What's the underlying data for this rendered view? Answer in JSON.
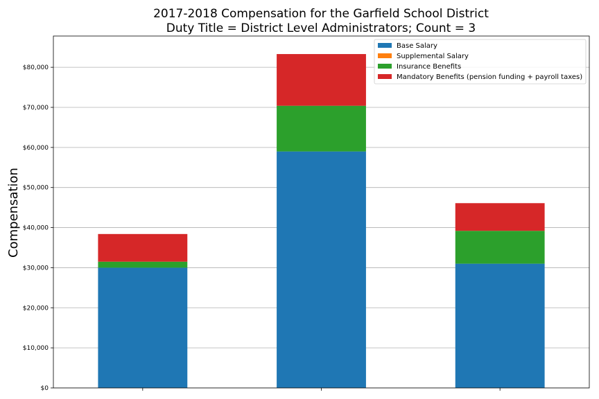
{
  "chart_data": {
    "type": "bar",
    "stacked": true,
    "title": "2017-2018 Compensation for the Garfield School District",
    "subtitle": "Duty Title = District Level Administrators; Count = 3",
    "xlabel": "",
    "ylabel": "Compensation",
    "categories": [
      "",
      "",
      ""
    ],
    "ylim": [
      0,
      87800
    ],
    "yticks": [
      {
        "value": 0,
        "label": "$0"
      },
      {
        "value": 10000,
        "label": "$10,000"
      },
      {
        "value": 20000,
        "label": "$20,000"
      },
      {
        "value": 30000,
        "label": "$30,000"
      },
      {
        "value": 40000,
        "label": "$40,000"
      },
      {
        "value": 50000,
        "label": "$50,000"
      },
      {
        "value": 60000,
        "label": "$60,000"
      },
      {
        "value": 70000,
        "label": "$70,000"
      },
      {
        "value": 80000,
        "label": "$80,000"
      }
    ],
    "grid": true,
    "legend_position": "top-right",
    "series": [
      {
        "name": "Base Salary",
        "color": "#1f77b4",
        "values": [
          30000,
          59000,
          31000
        ]
      },
      {
        "name": "Supplemental Salary",
        "color": "#ff7f0e",
        "values": [
          0,
          0,
          0
        ]
      },
      {
        "name": "Insurance Benefits",
        "color": "#2ca02c",
        "values": [
          1500,
          11400,
          8200
        ]
      },
      {
        "name": "Mandatory Benefits (pension funding + payroll taxes)",
        "color": "#d62728",
        "values": [
          6900,
          12900,
          6900
        ]
      }
    ]
  }
}
